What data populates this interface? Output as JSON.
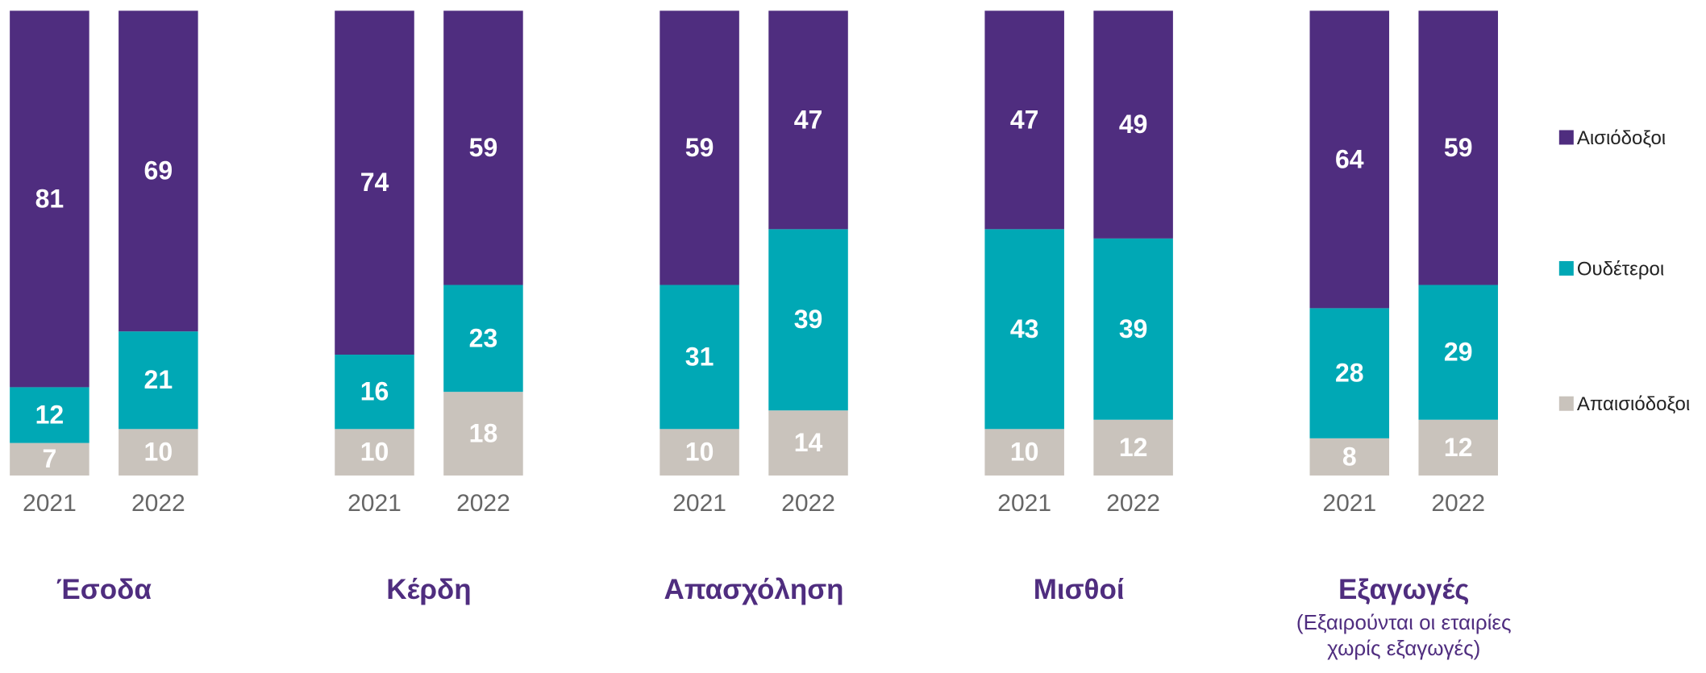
{
  "chart_data": {
    "type": "bar",
    "stacked": true,
    "categories": [
      "2021",
      "2022",
      "2021",
      "2022",
      "2021",
      "2022",
      "2021",
      "2022",
      "2021",
      "2022"
    ],
    "groups": [
      {
        "title": "Έσοδα"
      },
      {
        "title": "Κέρδη"
      },
      {
        "title": "Απασχόληση"
      },
      {
        "title": "Μισθοί"
      },
      {
        "title": "Εξαγωγές",
        "subtitle": "(Εξαιρούνται οι εταιρίες χωρίς εξαγωγές)"
      }
    ],
    "series": [
      {
        "name": "Αισιόδοξοι",
        "color": "#4f2d7f",
        "values": [
          81,
          69,
          74,
          59,
          59,
          47,
          47,
          49,
          64,
          59
        ]
      },
      {
        "name": "Ουδέτεροι",
        "color": "#00a8b5",
        "values": [
          12,
          21,
          16,
          23,
          31,
          39,
          43,
          39,
          28,
          29
        ]
      },
      {
        "name": "Απαισιόδοξοι",
        "color": "#c9c3bc",
        "values": [
          7,
          10,
          10,
          18,
          10,
          14,
          10,
          12,
          8,
          12
        ]
      }
    ],
    "ylim": [
      0,
      100
    ]
  }
}
